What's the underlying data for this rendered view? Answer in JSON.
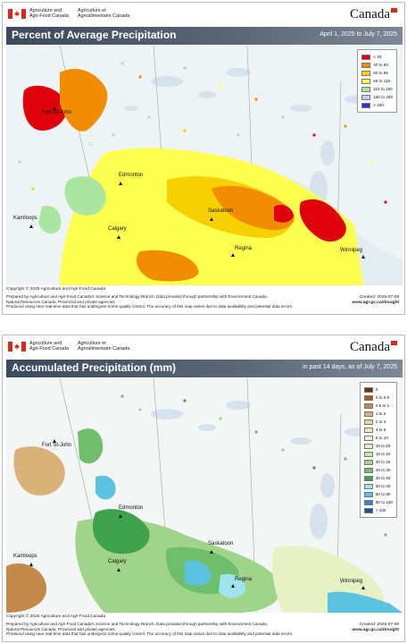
{
  "header": {
    "dept_en_line1": "Agriculture and",
    "dept_en_line2": "Agri-Food Canada",
    "dept_fr_line1": "Agriculture et",
    "dept_fr_line2": "Agroalimentaire Canada",
    "wordmark": "Canada"
  },
  "map1": {
    "title": "Percent of Average Precipitation",
    "date_range": "April 1, 2025 to July 7, 2025",
    "legend": [
      {
        "label": "< 40",
        "color": "#e0000b"
      },
      {
        "label": "40 to 60",
        "color": "#f28c00"
      },
      {
        "label": "60 to 85",
        "color": "#f7d000"
      },
      {
        "label": "85 to 115",
        "color": "#ffff4f"
      },
      {
        "label": "115 to 150",
        "color": "#a8e6a1"
      },
      {
        "label": "150 to 200",
        "color": "#c7c7f0"
      },
      {
        "label": "> 200",
        "color": "#3333cc"
      }
    ],
    "cities": {
      "fort_st_john": "Fort St-John",
      "edmonton": "Edmonton",
      "kamloops": "Kamloops",
      "calgary": "Calgary",
      "saskatoon": "Saskatoon",
      "regina": "Regina",
      "winnipeg": "Winnipeg"
    },
    "copyright": "Copyright © 2025 Agriculture and Agri-Food Canada",
    "footer_line1": "Prepared by Agriculture and Agri-Food Canada's Science and Technology Branch. Data provided through partnership with Environment Canada,",
    "footer_line2": "Natural Resources Canada, Provincial and private agencies.",
    "footer_line3": "Produced using near real-time data that has undergone some quality control. The accuracy of this map varies due to data availability and potential data errors.",
    "created": "Created: 2025-07-08",
    "url": "www.agr.gc.ca/drought"
  },
  "map2": {
    "title": "Accumulated Precipitation (mm)",
    "date_range": "in past 14 days, as of July 7, 2025",
    "legend": [
      {
        "label": "0",
        "color": "#7a2f00"
      },
      {
        "label": "0 to 0.5",
        "color": "#a05a1c"
      },
      {
        "label": "0.5 to 1",
        "color": "#c48a4a"
      },
      {
        "label": "1 to 2",
        "color": "#d9b27a"
      },
      {
        "label": "2 to 4",
        "color": "#ebd39e"
      },
      {
        "label": "4 to 6",
        "color": "#f5e8bd"
      },
      {
        "label": "6 to 10",
        "color": "#f7f3d0"
      },
      {
        "label": "10 to 15",
        "color": "#e6f2c4"
      },
      {
        "label": "15 to 20",
        "color": "#c7e6a6"
      },
      {
        "label": "20 to 25",
        "color": "#a0d48a"
      },
      {
        "label": "25 to 30",
        "color": "#6fbf6a"
      },
      {
        "label": "30 to 50",
        "color": "#3fa24d"
      },
      {
        "label": "50 to 60",
        "color": "#9fe3ee"
      },
      {
        "label": "60 to 80",
        "color": "#59c3e0"
      },
      {
        "label": "80 to 100",
        "color": "#2c8cc8"
      },
      {
        "label": "> 100",
        "color": "#1b4fa0"
      }
    ],
    "cities": {
      "fort_st_john": "Fort St-John",
      "edmonton": "Edmonton",
      "kamloops": "Kamloops",
      "calgary": "Calgary",
      "saskatoon": "Saskatoon",
      "regina": "Regina",
      "winnipeg": "Winnipeg"
    },
    "copyright": "Copyright © 2025 Agriculture and Agri-Food Canada",
    "footer_line1": "Prepared by Agriculture and Agri-Food Canada's Science and Technology Branch. Data provided through partnership with Environment Canada,",
    "footer_line2": "Natural Resources Canada, Provincial and private agencies.",
    "footer_line3": "Produced using near real-time data that has undergone some quality control. The accuracy of this map varies due to data availability and potential data errors.",
    "created": "Created: 2025-07-08",
    "url": "www.agr.gc.ca/drought"
  }
}
